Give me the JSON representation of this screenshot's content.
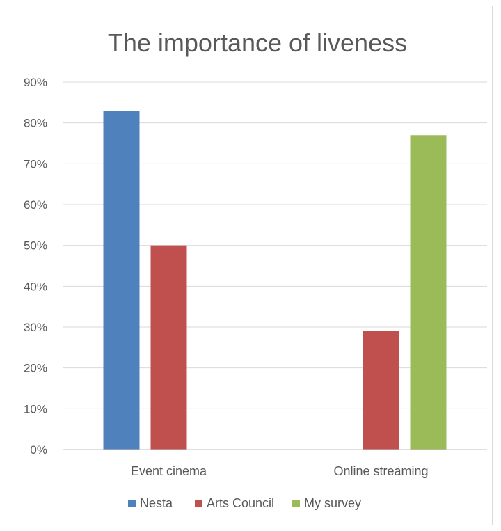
{
  "chart_data": {
    "type": "bar",
    "title": "The importance of liveness",
    "categories": [
      "Event cinema",
      "Online streaming"
    ],
    "series": [
      {
        "name": "Nesta",
        "color": "#4f81bd",
        "values": [
          83,
          null
        ]
      },
      {
        "name": "Arts Council",
        "color": "#c0504d",
        "values": [
          50,
          29
        ]
      },
      {
        "name": "My survey",
        "color": "#9bbb59",
        "values": [
          null,
          77
        ]
      }
    ],
    "ylim": [
      0,
      90
    ],
    "yticks": [
      0,
      10,
      20,
      30,
      40,
      50,
      60,
      70,
      80,
      90
    ],
    "ytick_labels": [
      "0%",
      "10%",
      "20%",
      "30%",
      "40%",
      "50%",
      "60%",
      "70%",
      "80%",
      "90%"
    ],
    "grid": true,
    "legend_position": "bottom",
    "gridline_color": "#d9d9d9",
    "axis_color": "#bfbfbf"
  }
}
